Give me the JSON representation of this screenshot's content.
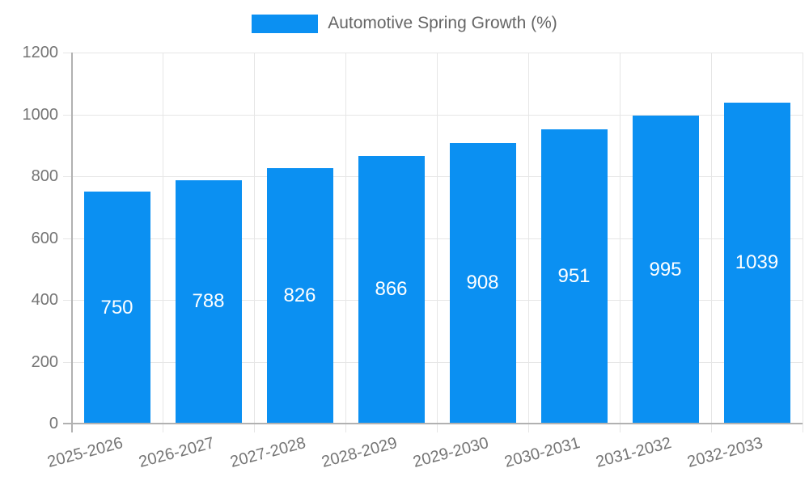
{
  "legend": {
    "label": "Automotive Spring Growth (%)"
  },
  "chart_data": {
    "type": "bar",
    "title": "Automotive Spring Growth (%)",
    "categories": [
      "2025-2026",
      "2026-2027",
      "2027-2028",
      "2028-2029",
      "2029-2030",
      "2030-2031",
      "2031-2032",
      "2032-2033"
    ],
    "values": [
      750,
      788,
      826,
      866,
      908,
      951,
      995,
      1039
    ],
    "value_labels": [
      "750",
      "788",
      "826",
      "866",
      "908",
      "951",
      "995",
      "1039"
    ],
    "xlabel": "",
    "ylabel": "",
    "ylim": [
      0,
      1200
    ],
    "yticks": [
      0,
      200,
      400,
      600,
      800,
      1000,
      1200
    ],
    "grid": true,
    "legend_position": "top",
    "x_label_rotation_deg": -15,
    "colors": {
      "bar": "#0b90f2",
      "value_label": "#ffffff",
      "axis_label": "#757575",
      "legend_text": "#666666",
      "gridline": "#e6e6e6",
      "axis_line": "#b1b1b1"
    }
  }
}
